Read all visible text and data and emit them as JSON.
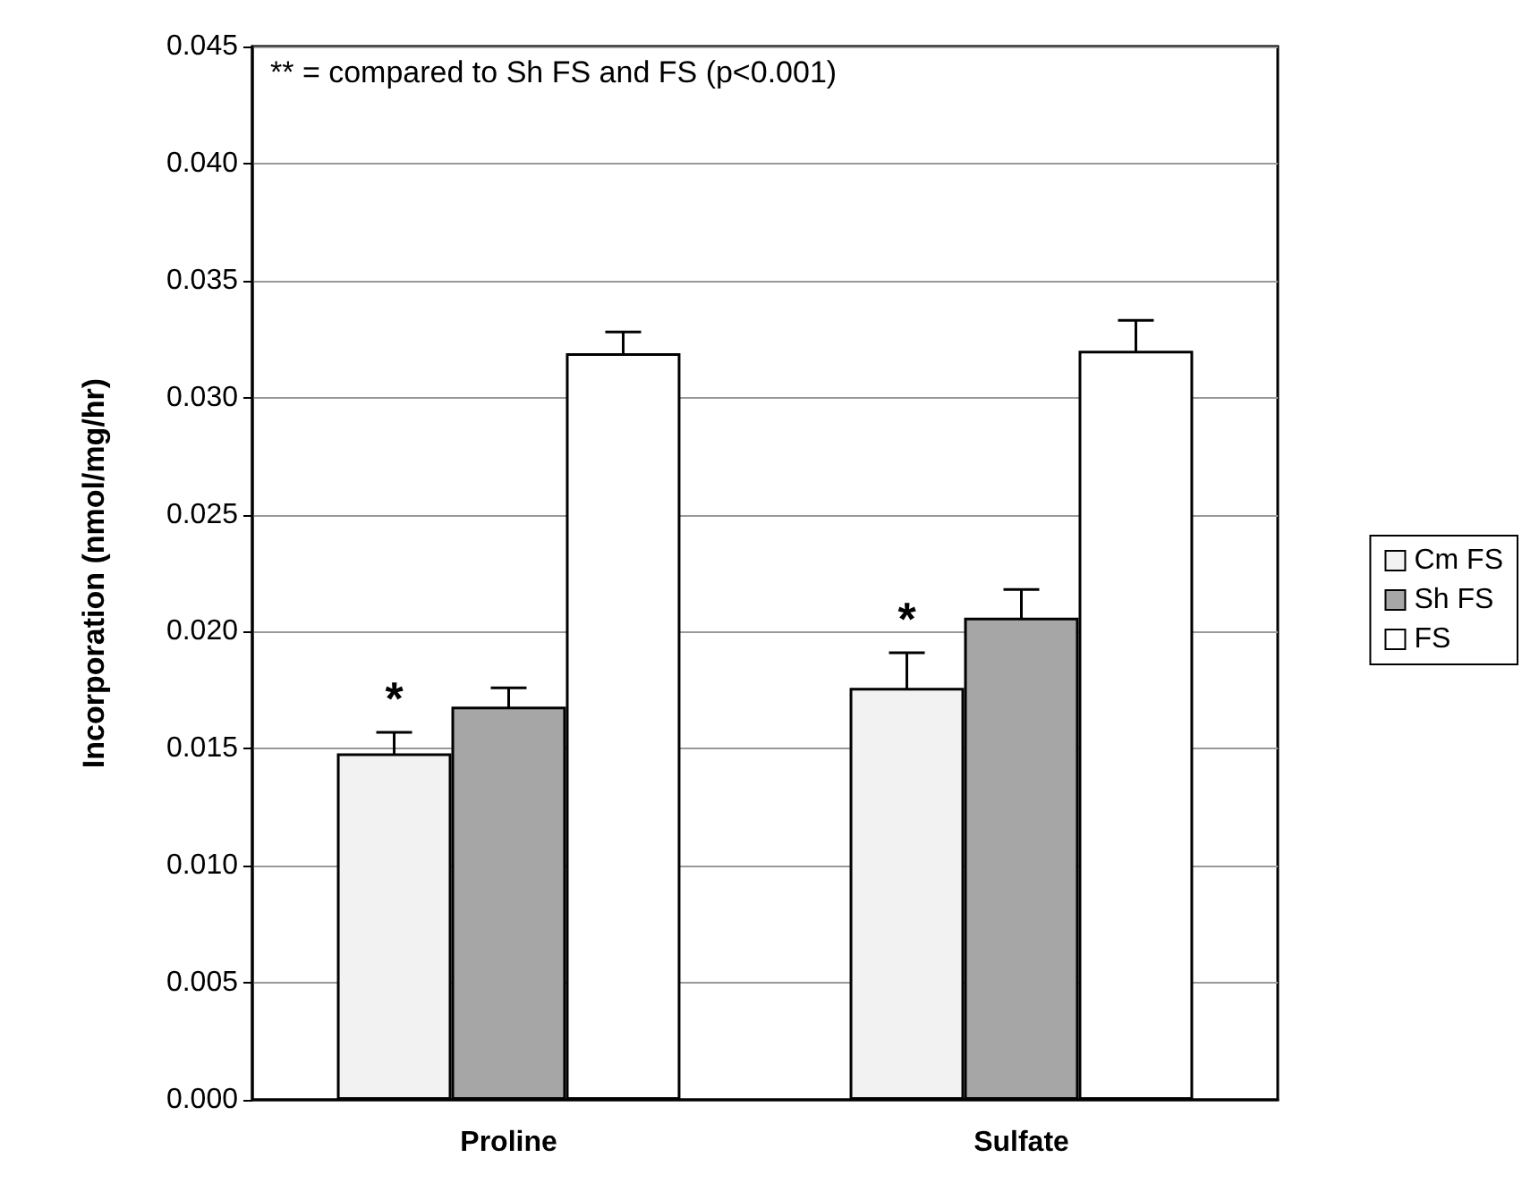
{
  "chart_data": {
    "type": "bar",
    "ylabel": "Incorporation (nmol/mg/hr)",
    "categories": [
      "Proline",
      "Sulfate"
    ],
    "series": [
      {
        "name": "Cm FS",
        "color": "#f2f2f2",
        "values": [
          0.0148,
          0.0176
        ],
        "errors": [
          0.0009,
          0.0015
        ],
        "value_labels": [
          "*",
          "*"
        ]
      },
      {
        "name": "Sh FS",
        "color": "#a6a6a6",
        "values": [
          0.0168,
          0.0206
        ],
        "errors": [
          0.0008,
          0.0012
        ]
      },
      {
        "name": "FS",
        "color": "#ffffff",
        "values": [
          0.0319,
          0.032
        ],
        "errors": [
          0.0009,
          0.0013
        ]
      }
    ],
    "ylim": [
      0,
      0.045
    ],
    "yticks": [
      {
        "value": 0,
        "label": "0.000"
      },
      0.005,
      {
        "value": 0.01,
        "label": "0.010"
      },
      0.015,
      {
        "value": 0.02,
        "label": "0.020"
      },
      0.025,
      {
        "value": 0.03,
        "label": "0.030"
      },
      0.035,
      {
        "value": 0.04,
        "label": "0.040"
      },
      0.045
    ],
    "grid": "y",
    "legend": "right",
    "annotations": [
      "** = compared to Sh FS and FS (p<0.001)"
    ]
  }
}
